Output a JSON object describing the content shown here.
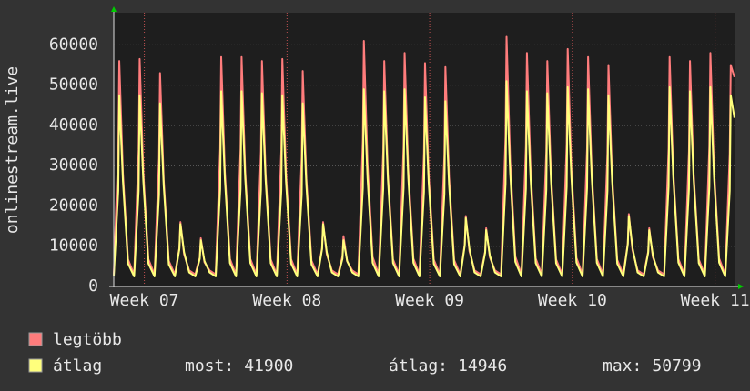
{
  "chart_data": {
    "type": "line",
    "ylabel": "onlinestream.live",
    "ylim": [
      0,
      68000
    ],
    "yticks": [
      0,
      10000,
      20000,
      30000,
      40000,
      50000,
      60000
    ],
    "xlim": [
      0,
      30.5
    ],
    "xticks": [
      {
        "value": 1.5,
        "label": "Week 07"
      },
      {
        "value": 8.5,
        "label": "Week 08"
      },
      {
        "value": 15.5,
        "label": "Week 09"
      },
      {
        "value": 22.5,
        "label": "Week 10"
      },
      {
        "value": 29.5,
        "label": "Week 11"
      }
    ],
    "grid": true,
    "x": [
      0,
      0.22,
      0.27,
      0.45,
      0.7,
      1,
      1.22,
      1.27,
      1.45,
      1.7,
      2,
      2.22,
      2.27,
      2.45,
      2.7,
      3,
      3.22,
      3.27,
      3.45,
      3.7,
      4,
      4.22,
      4.27,
      4.45,
      4.7,
      5,
      5.22,
      5.27,
      5.45,
      5.7,
      6,
      6.22,
      6.27,
      6.45,
      6.7,
      7,
      7.22,
      7.27,
      7.45,
      7.7,
      8,
      8.22,
      8.27,
      8.45,
      8.7,
      9,
      9.22,
      9.27,
      9.45,
      9.7,
      10,
      10.22,
      10.27,
      10.45,
      10.7,
      11,
      11.22,
      11.27,
      11.45,
      11.7,
      12,
      12.22,
      12.27,
      12.45,
      12.7,
      13,
      13.22,
      13.27,
      13.45,
      13.7,
      14,
      14.22,
      14.27,
      14.45,
      14.7,
      15,
      15.22,
      15.27,
      15.45,
      15.7,
      16,
      16.22,
      16.27,
      16.45,
      16.7,
      17,
      17.22,
      17.27,
      17.45,
      17.7,
      18,
      18.22,
      18.27,
      18.45,
      18.7,
      19,
      19.22,
      19.27,
      19.45,
      19.7,
      20,
      20.22,
      20.27,
      20.45,
      20.7,
      21,
      21.22,
      21.27,
      21.45,
      21.7,
      22,
      22.22,
      22.27,
      22.45,
      22.7,
      23,
      23.22,
      23.27,
      23.45,
      23.7,
      24,
      24.22,
      24.27,
      24.45,
      24.7,
      25,
      25.22,
      25.27,
      25.45,
      25.7,
      26,
      26.22,
      26.27,
      26.45,
      26.7,
      27,
      27.22,
      27.27,
      27.45,
      27.7,
      28,
      28.22,
      28.27,
      28.45,
      28.7,
      29,
      29.22,
      29.27,
      29.45,
      29.7,
      30,
      30.22,
      30.27,
      30.45
    ],
    "series": [
      {
        "name": "legtöbb",
        "color": "#ff7c7c",
        "values": [
          3000,
          33600,
          56000,
          28000,
          6720,
          3000,
          33900,
          56500,
          28250,
          6780,
          3000,
          31800,
          53000,
          26500,
          6360,
          3000,
          9600,
          16000,
          8000,
          4000,
          3000,
          7200,
          12000,
          6000,
          4000,
          3000,
          34200,
          57000,
          28500,
          6840,
          3000,
          34200,
          57000,
          28500,
          6840,
          3000,
          33600,
          56000,
          28000,
          6720,
          3000,
          33900,
          56500,
          28250,
          6780,
          3000,
          32100,
          53500,
          26750,
          6420,
          3000,
          9600,
          16000,
          8000,
          4000,
          3000,
          7500,
          12500,
          6250,
          4000,
          3000,
          36600,
          61000,
          30500,
          7320,
          3000,
          33600,
          56000,
          28000,
          6720,
          3000,
          34800,
          58000,
          29000,
          6960,
          3000,
          33300,
          55500,
          27750,
          6660,
          3000,
          32700,
          54500,
          27250,
          6540,
          3000,
          10500,
          17500,
          8750,
          4000,
          3000,
          8700,
          14500,
          7250,
          4000,
          3000,
          37200,
          62000,
          31000,
          7440,
          3000,
          34800,
          58000,
          29000,
          6960,
          3000,
          33600,
          56000,
          28000,
          6720,
          3000,
          35400,
          59000,
          29500,
          7080,
          3000,
          34200,
          57000,
          28500,
          6840,
          3000,
          33000,
          55000,
          27500,
          6600,
          3000,
          10800,
          18000,
          9000,
          4000,
          3000,
          8700,
          14500,
          7250,
          4000,
          3000,
          34200,
          57000,
          28500,
          6840,
          3000,
          33600,
          56000,
          28000,
          6720,
          3000,
          34800,
          58000,
          29000,
          6960,
          3000,
          33000,
          55000,
          52000
        ]
      },
      {
        "name": "átlag",
        "color": "#ffff7c",
        "values": [
          2500,
          23750,
          47500,
          26125,
          5700,
          2500,
          23750,
          47500,
          26125,
          5700,
          2500,
          22750,
          45500,
          25025,
          5460,
          2500,
          9300,
          15500,
          8525,
          3500,
          2500,
          6900,
          11500,
          6325,
          3500,
          2500,
          24250,
          48500,
          26675,
          5820,
          2500,
          24250,
          48500,
          26675,
          5820,
          2500,
          24000,
          48000,
          26400,
          5760,
          2500,
          23750,
          47500,
          26125,
          5700,
          2500,
          22750,
          45500,
          25025,
          5460,
          2500,
          9300,
          15500,
          8525,
          3500,
          2500,
          6900,
          11500,
          6325,
          3500,
          2500,
          24500,
          49000,
          26950,
          5880,
          2500,
          24250,
          48500,
          26675,
          5820,
          2500,
          24500,
          49000,
          26950,
          5880,
          2500,
          23500,
          47000,
          25850,
          5640,
          2500,
          23000,
          46000,
          25300,
          5520,
          2500,
          10200,
          17000,
          9350,
          3500,
          2500,
          8400,
          14000,
          7700,
          3500,
          2500,
          25500,
          51000,
          28050,
          6120,
          2500,
          24250,
          48500,
          26675,
          5820,
          2500,
          24000,
          48000,
          26400,
          5760,
          2500,
          24750,
          49500,
          27225,
          5940,
          2500,
          24500,
          49000,
          26950,
          5880,
          2500,
          23750,
          47500,
          26125,
          5700,
          2500,
          10500,
          17500,
          9625,
          3500,
          2500,
          8400,
          14000,
          7700,
          3500,
          2500,
          24750,
          49500,
          27225,
          5940,
          2500,
          24250,
          48500,
          26675,
          5820,
          2500,
          24750,
          49500,
          27225,
          5940,
          2500,
          23750,
          47500,
          41900
        ]
      }
    ],
    "stats": [
      {
        "label": "most:",
        "value": 41900
      },
      {
        "label": "átlag:",
        "value": 14946
      },
      {
        "label": "max:",
        "value": 50799
      }
    ]
  }
}
